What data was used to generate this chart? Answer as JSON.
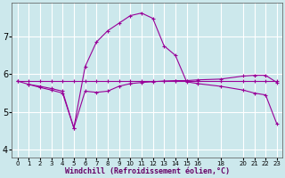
{
  "xlabel": "Windchill (Refroidissement éolien,°C)",
  "background_color": "#cce8ec",
  "line_color": "#990099",
  "grid_color": "#ffffff",
  "xlim": [
    -0.5,
    23.5
  ],
  "ylim": [
    3.8,
    7.9
  ],
  "yticks": [
    4,
    5,
    6,
    7
  ],
  "xticks": [
    0,
    1,
    2,
    3,
    4,
    5,
    6,
    7,
    8,
    9,
    10,
    11,
    12,
    13,
    14,
    15,
    16,
    18,
    20,
    21,
    22,
    23
  ],
  "xtick_labels": [
    "0",
    "1",
    "2",
    "3",
    "4",
    "5",
    "6",
    "7",
    "8",
    "9",
    "10",
    "11",
    "12",
    "13",
    "14",
    "15",
    "16",
    "18",
    "20",
    "21",
    "22",
    "23"
  ],
  "series1_x": [
    0,
    1,
    2,
    3,
    4,
    5,
    6,
    7,
    8,
    9,
    10,
    11,
    12,
    13,
    14,
    15,
    16,
    18,
    20,
    21,
    22,
    23
  ],
  "series1_y": [
    5.82,
    5.82,
    5.82,
    5.82,
    5.82,
    5.82,
    5.82,
    5.82,
    5.82,
    5.82,
    5.82,
    5.82,
    5.82,
    5.82,
    5.82,
    5.82,
    5.82,
    5.82,
    5.82,
    5.82,
    5.82,
    5.82
  ],
  "series2_x": [
    0,
    1,
    2,
    3,
    4,
    5,
    6,
    7,
    8,
    9,
    10,
    11,
    12,
    13,
    14,
    15,
    16,
    18,
    20,
    21,
    22,
    23
  ],
  "series2_y": [
    5.82,
    5.73,
    5.68,
    5.62,
    5.55,
    4.58,
    5.55,
    5.52,
    5.55,
    5.68,
    5.75,
    5.78,
    5.8,
    5.82,
    5.83,
    5.83,
    5.85,
    5.87,
    5.95,
    5.97,
    5.97,
    5.78
  ],
  "series3_x": [
    1,
    2,
    3,
    4,
    5,
    6,
    7,
    8,
    9,
    10,
    11,
    12,
    13,
    14,
    15,
    16,
    18,
    20,
    21,
    22,
    23
  ],
  "series3_y": [
    5.73,
    5.65,
    5.58,
    5.5,
    4.58,
    6.2,
    6.85,
    7.15,
    7.35,
    7.55,
    7.62,
    7.48,
    6.75,
    6.5,
    5.8,
    5.75,
    5.68,
    5.58,
    5.5,
    5.45,
    4.68
  ],
  "marker": "+"
}
